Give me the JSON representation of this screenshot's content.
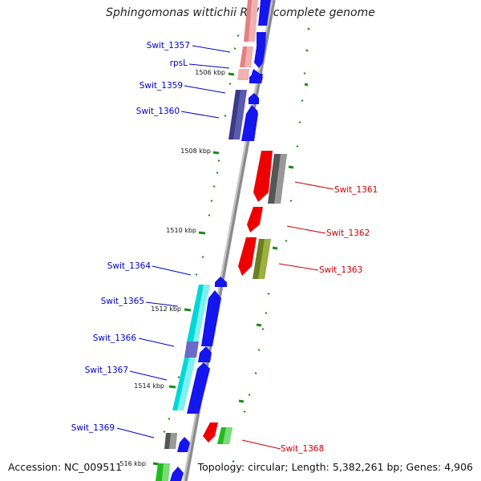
{
  "map": {
    "title": "Sphingomonas wittichii RW1, complete genome",
    "accession": "Accession: NC_009511",
    "summary": "Topology: circular; Length: 5,382,261 bp; Genes: 4,906"
  },
  "colors": {
    "forward_label": "#0000cc",
    "reverse_label": "#cc0000",
    "backbone": "#888888",
    "tick_green": "#1a8a1a"
  },
  "gene_labels": [
    {
      "text": "Swit_1357",
      "strand": "forward"
    },
    {
      "text": "rpsL",
      "strand": "forward"
    },
    {
      "text": "Swit_1359",
      "strand": "forward"
    },
    {
      "text": "Swit_1360",
      "strand": "forward"
    },
    {
      "text": "Swit_1361",
      "strand": "reverse"
    },
    {
      "text": "Swit_1362",
      "strand": "reverse"
    },
    {
      "text": "Swit_1363",
      "strand": "reverse"
    },
    {
      "text": "Swit_1364",
      "strand": "forward"
    },
    {
      "text": "Swit_1365",
      "strand": "forward"
    },
    {
      "text": "Swit_1366",
      "strand": "forward"
    },
    {
      "text": "Swit_1367",
      "strand": "forward"
    },
    {
      "text": "Swit_1368",
      "strand": "reverse"
    },
    {
      "text": "Swit_1369",
      "strand": "forward"
    }
  ],
  "kbp_markers": [
    "1506 kbp",
    "1508 kbp",
    "1510 kbp",
    "1512 kbp",
    "1514 kbp",
    "516 kbp"
  ]
}
